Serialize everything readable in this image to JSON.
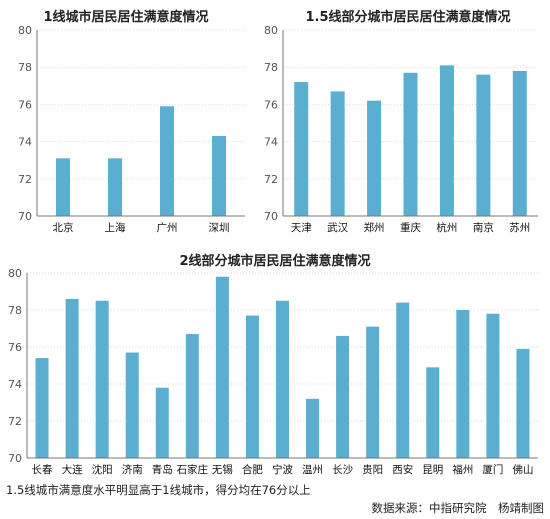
{
  "chart_data": [
    {
      "type": "bar",
      "title": "1线城市居民居住满意度情况",
      "categories": [
        "北京",
        "上海",
        "广州",
        "深圳"
      ],
      "values": [
        73.1,
        73.1,
        75.9,
        74.3
      ],
      "ylim": [
        70,
        80
      ],
      "yticks": [
        70,
        72,
        74,
        76,
        78,
        80
      ],
      "grid": true,
      "bar_color": "#5aaed0"
    },
    {
      "type": "bar",
      "title": "1.5线部分城市居民居住满意度情况",
      "categories": [
        "天津",
        "武汉",
        "郑州",
        "重庆",
        "杭州",
        "南京",
        "苏州"
      ],
      "values": [
        77.2,
        76.7,
        76.2,
        77.7,
        78.1,
        77.6,
        77.8
      ],
      "ylim": [
        70,
        80
      ],
      "yticks": [
        70,
        72,
        74,
        76,
        78,
        80
      ],
      "grid": true,
      "bar_color": "#5aaed0"
    },
    {
      "type": "bar",
      "title": "2线部分城市居民居住满意度情况",
      "categories": [
        "长春",
        "大连",
        "沈阳",
        "济南",
        "青岛",
        "石家庄",
        "无锡",
        "合肥",
        "宁波",
        "温州",
        "长沙",
        "贵阳",
        "西安",
        "昆明",
        "福州",
        "厦门",
        "佛山"
      ],
      "values": [
        75.4,
        78.6,
        78.5,
        75.7,
        73.8,
        76.7,
        79.8,
        77.7,
        78.5,
        73.2,
        76.6,
        77.1,
        78.4,
        74.9,
        78.0,
        77.8,
        75.9
      ],
      "ylim": [
        70,
        80
      ],
      "yticks": [
        70,
        72,
        74,
        76,
        78,
        80
      ],
      "grid": true,
      "bar_color": "#5aaed0"
    }
  ],
  "footer": {
    "note": "1.5线城市满意度水平明显高于1线城市，得分均在76分以上",
    "source": "数据来源：中指研究院　杨靖制图"
  }
}
